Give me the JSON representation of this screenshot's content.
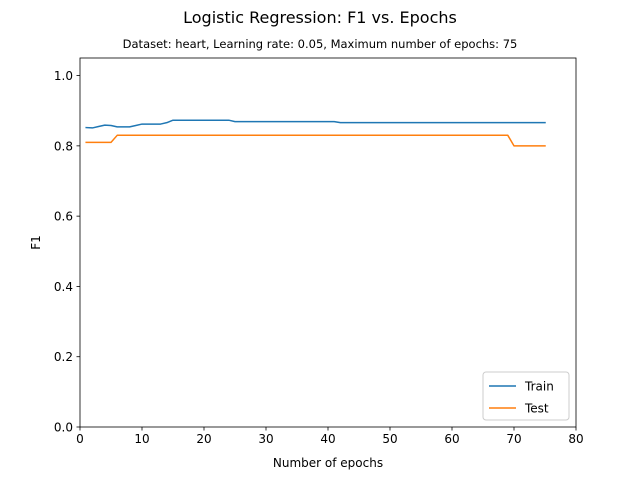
{
  "chart_data": {
    "type": "line",
    "title": "Logistic Regression: F1 vs. Epochs",
    "subtitle": "Dataset: heart, Learning rate: 0.05, Maximum number of epochs: 75",
    "xlabel": "Number of epochs",
    "ylabel": "F1",
    "xlim": [
      0,
      80
    ],
    "ylim": [
      0,
      1.05
    ],
    "xticks": [
      0,
      10,
      20,
      30,
      40,
      50,
      60,
      70,
      80
    ],
    "yticks": [
      0.0,
      0.2,
      0.4,
      0.6,
      0.8,
      1.0
    ],
    "xtick_labels": [
      "0",
      "10",
      "20",
      "30",
      "40",
      "50",
      "60",
      "70",
      "80"
    ],
    "ytick_labels": [
      "0.0",
      "0.2",
      "0.4",
      "0.6",
      "0.8",
      "1.0"
    ],
    "grid": false,
    "legend_position": "lower-right",
    "series": [
      {
        "name": "Train",
        "color": "#1f77b4",
        "x": [
          1,
          2,
          3,
          4,
          5,
          6,
          7,
          8,
          9,
          10,
          11,
          12,
          13,
          14,
          15,
          16,
          17,
          18,
          19,
          20,
          21,
          22,
          23,
          24,
          25,
          26,
          27,
          28,
          29,
          30,
          31,
          32,
          33,
          34,
          35,
          36,
          37,
          38,
          39,
          40,
          41,
          42,
          43,
          44,
          45,
          46,
          47,
          48,
          49,
          50,
          51,
          52,
          53,
          54,
          55,
          56,
          57,
          58,
          59,
          60,
          61,
          62,
          63,
          64,
          65,
          66,
          67,
          68,
          69,
          70,
          71,
          72,
          73,
          74,
          75
        ],
        "y": [
          0.852,
          0.851,
          0.855,
          0.859,
          0.858,
          0.854,
          0.854,
          0.854,
          0.858,
          0.862,
          0.862,
          0.862,
          0.862,
          0.866,
          0.873,
          0.873,
          0.873,
          0.873,
          0.873,
          0.873,
          0.873,
          0.873,
          0.873,
          0.873,
          0.869,
          0.869,
          0.869,
          0.869,
          0.869,
          0.869,
          0.869,
          0.869,
          0.869,
          0.869,
          0.869,
          0.869,
          0.869,
          0.869,
          0.869,
          0.869,
          0.869,
          0.866,
          0.866,
          0.866,
          0.866,
          0.866,
          0.866,
          0.866,
          0.866,
          0.866,
          0.866,
          0.866,
          0.866,
          0.866,
          0.866,
          0.866,
          0.866,
          0.866,
          0.866,
          0.866,
          0.866,
          0.866,
          0.866,
          0.866,
          0.866,
          0.866,
          0.866,
          0.866,
          0.866,
          0.866,
          0.866,
          0.866,
          0.866,
          0.866,
          0.866
        ]
      },
      {
        "name": "Test",
        "color": "#ff7f0e",
        "x": [
          1,
          2,
          3,
          4,
          5,
          6,
          7,
          8,
          9,
          10,
          11,
          12,
          13,
          14,
          15,
          16,
          17,
          18,
          19,
          20,
          21,
          22,
          23,
          24,
          25,
          26,
          27,
          28,
          29,
          30,
          31,
          32,
          33,
          34,
          35,
          36,
          37,
          38,
          39,
          40,
          41,
          42,
          43,
          44,
          45,
          46,
          47,
          48,
          49,
          50,
          51,
          52,
          53,
          54,
          55,
          56,
          57,
          58,
          59,
          60,
          61,
          62,
          63,
          64,
          65,
          66,
          67,
          68,
          69,
          70,
          71,
          72,
          73,
          74,
          75
        ],
        "y": [
          0.81,
          0.81,
          0.81,
          0.81,
          0.81,
          0.83,
          0.83,
          0.83,
          0.83,
          0.83,
          0.83,
          0.83,
          0.83,
          0.83,
          0.83,
          0.83,
          0.83,
          0.83,
          0.83,
          0.83,
          0.83,
          0.83,
          0.83,
          0.83,
          0.83,
          0.83,
          0.83,
          0.83,
          0.83,
          0.83,
          0.83,
          0.83,
          0.83,
          0.83,
          0.83,
          0.83,
          0.83,
          0.83,
          0.83,
          0.83,
          0.83,
          0.83,
          0.83,
          0.83,
          0.83,
          0.83,
          0.83,
          0.83,
          0.83,
          0.83,
          0.83,
          0.83,
          0.83,
          0.83,
          0.83,
          0.83,
          0.83,
          0.83,
          0.83,
          0.83,
          0.83,
          0.83,
          0.83,
          0.83,
          0.83,
          0.83,
          0.83,
          0.83,
          0.83,
          0.8,
          0.8,
          0.8,
          0.8,
          0.8,
          0.8
        ]
      }
    ]
  }
}
